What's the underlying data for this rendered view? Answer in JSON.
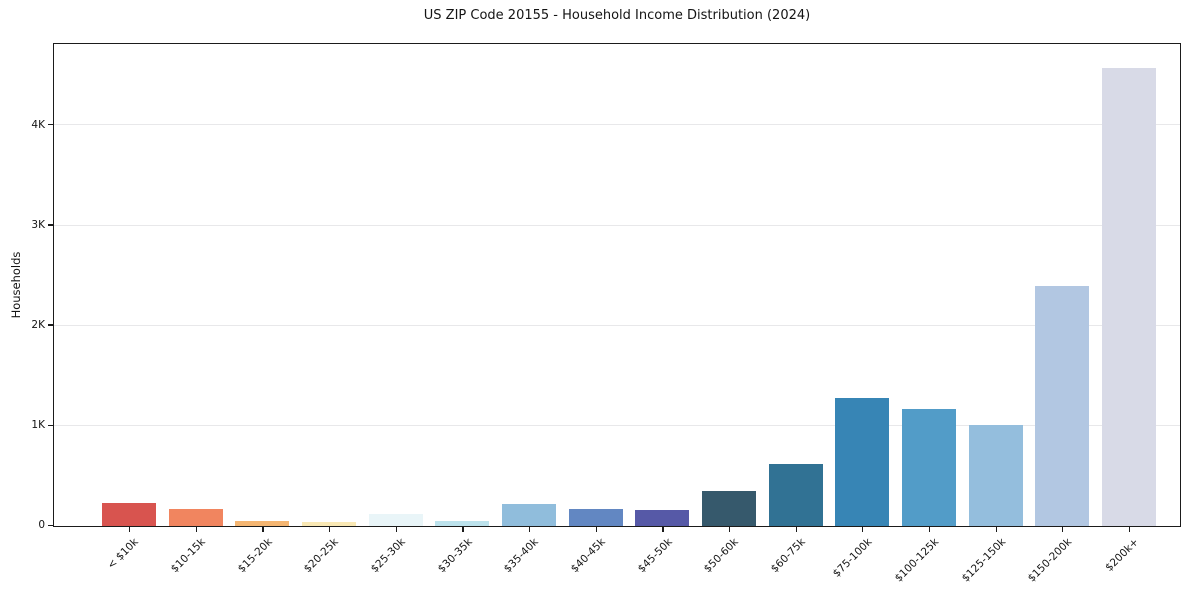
{
  "chart_data": {
    "type": "bar",
    "title": "US ZIP Code 20155 - Household Income Distribution (2024)",
    "xlabel": "",
    "ylabel": "Households",
    "categories": [
      "< $10k",
      "$10-15k",
      "$15-20k",
      "$20-25k",
      "$25-30k",
      "$30-35k",
      "$35-40k",
      "$40-45k",
      "$45-50k",
      "$50-60k",
      "$60-75k",
      "$75-100k",
      "$100-125k",
      "$125-150k",
      "$150-200k",
      "$200k+"
    ],
    "values": [
      230,
      165,
      48,
      40,
      115,
      55,
      220,
      170,
      160,
      345,
      615,
      1275,
      1165,
      1010,
      2400,
      4570
    ],
    "bar_colors": [
      "#d8544f",
      "#f1855f",
      "#f4b571",
      "#f9e8b4",
      "#e9f5f8",
      "#bce2ec",
      "#90bddc",
      "#6287c2",
      "#5659a7",
      "#36596c",
      "#317294",
      "#3785b5",
      "#529cc8",
      "#94bedd",
      "#b2c7e2",
      "#d8dae7"
    ],
    "ylim": [
      0,
      4800
    ],
    "yticks": [
      {
        "value": 0,
        "label": "0"
      },
      {
        "value": 1000,
        "label": "1K"
      },
      {
        "value": 2000,
        "label": "2K"
      },
      {
        "value": 3000,
        "label": "3K"
      },
      {
        "value": 4000,
        "label": "4K"
      }
    ],
    "grid": "horizontal-only",
    "legend": "none",
    "spine_color": "#1b1b1b",
    "grid_color": "#e8e8ea",
    "background": "#ffffff"
  }
}
